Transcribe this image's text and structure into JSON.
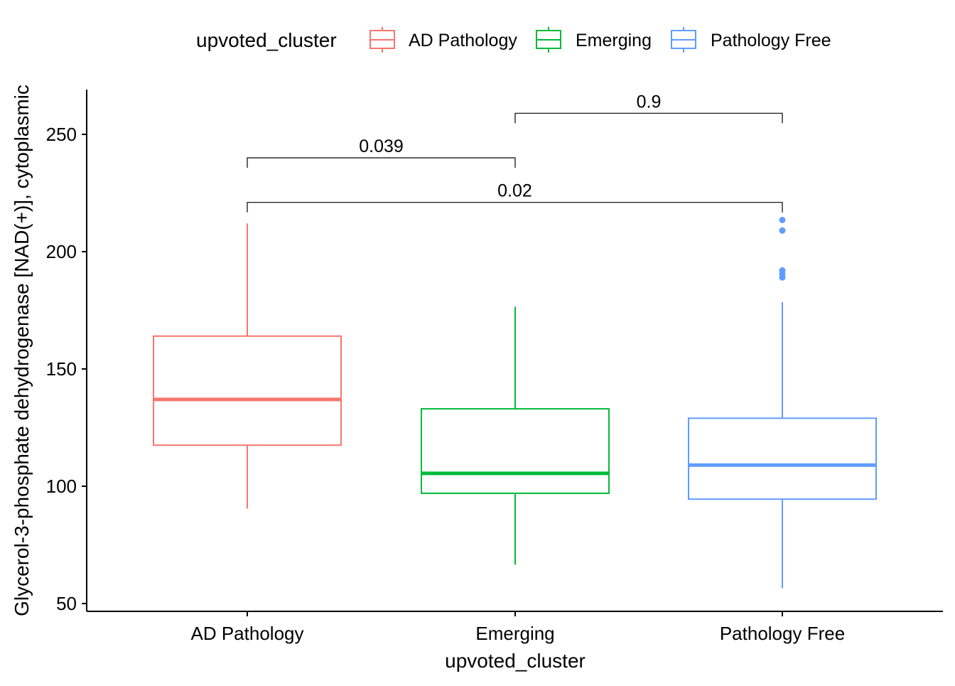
{
  "chart_data": {
    "type": "box",
    "title": "",
    "xlabel": "upvoted_cluster",
    "ylabel": "Glycerol-3-phosphate dehydrogenase [NAD(+)], cytoplasmic",
    "ylim": [
      47,
      269
    ],
    "yticks": [
      50,
      100,
      150,
      200,
      250
    ],
    "grid": false,
    "legend": {
      "title": "upvoted_cluster",
      "placement": "top",
      "entries": [
        "AD Pathology",
        "Emerging",
        "Pathology Free"
      ]
    },
    "categories": [
      "AD Pathology",
      "Emerging",
      "Pathology Free"
    ],
    "colors": {
      "AD Pathology": "#F8766D",
      "Emerging": "#00BA38",
      "Pathology Free": "#619CFF"
    },
    "boxes": [
      {
        "category": "AD Pathology",
        "whisker_low": 90.5,
        "q1": 117.5,
        "median": 137,
        "q3": 164,
        "whisker_high": 212,
        "outliers": []
      },
      {
        "category": "Emerging",
        "whisker_low": 66.5,
        "q1": 97,
        "median": 105.5,
        "q3": 133,
        "whisker_high": 176.5,
        "outliers": []
      },
      {
        "category": "Pathology Free",
        "whisker_low": 56.5,
        "q1": 94.5,
        "median": 109,
        "q3": 129,
        "whisker_high": 178.5,
        "outliers": [
          213.5,
          209,
          192,
          190.5,
          189
        ]
      }
    ],
    "comparisons": [
      {
        "from": "AD Pathology",
        "to": "Emerging",
        "label": "0.039",
        "y": 240
      },
      {
        "from": "Emerging",
        "to": "Pathology Free",
        "label": "0.9",
        "y": 259
      },
      {
        "from": "AD Pathology",
        "to": "Pathology Free",
        "label": "0.02",
        "y": 221
      }
    ]
  }
}
